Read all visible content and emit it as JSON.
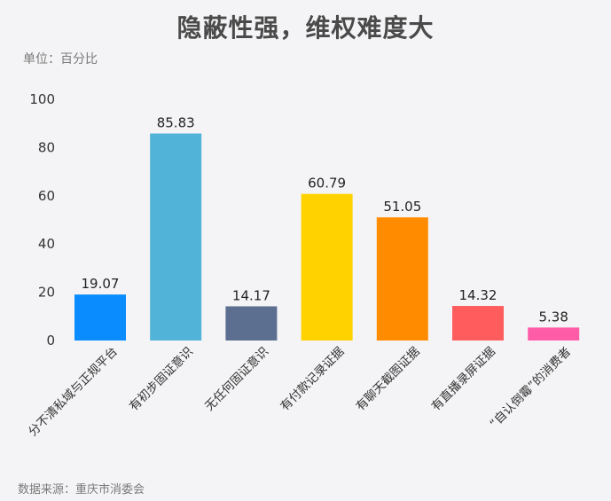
{
  "chart_data": {
    "type": "bar",
    "title": "隐蔽性强，维权难度大",
    "unit_label": "单位：百分比",
    "source": "数据来源：重庆市消委会",
    "categories": [
      "分不清私域与正规平台",
      "有初步固证意识",
      "无任何固证意识",
      "有付款记录证据",
      "有聊天截图证据",
      "有直播录屏证据",
      "“自认倒霉”的消费者"
    ],
    "values": [
      19.07,
      85.83,
      14.17,
      60.79,
      51.05,
      14.32,
      5.38
    ],
    "value_labels": [
      "19.07",
      "85.83",
      "14.17",
      "60.79",
      "51.05",
      "14.32",
      "5.38"
    ],
    "colors": [
      "#0a8cff",
      "#52b3d9",
      "#5d6f91",
      "#ffd200",
      "#ff8c00",
      "#ff5d5d",
      "#ff5ca8"
    ],
    "ylim": [
      0,
      100
    ],
    "yticks": [
      0,
      20,
      40,
      60,
      80,
      100
    ],
    "ytick_labels": [
      "0",
      "20",
      "40",
      "60",
      "80",
      "100"
    ],
    "grid": false,
    "legend": "none"
  }
}
